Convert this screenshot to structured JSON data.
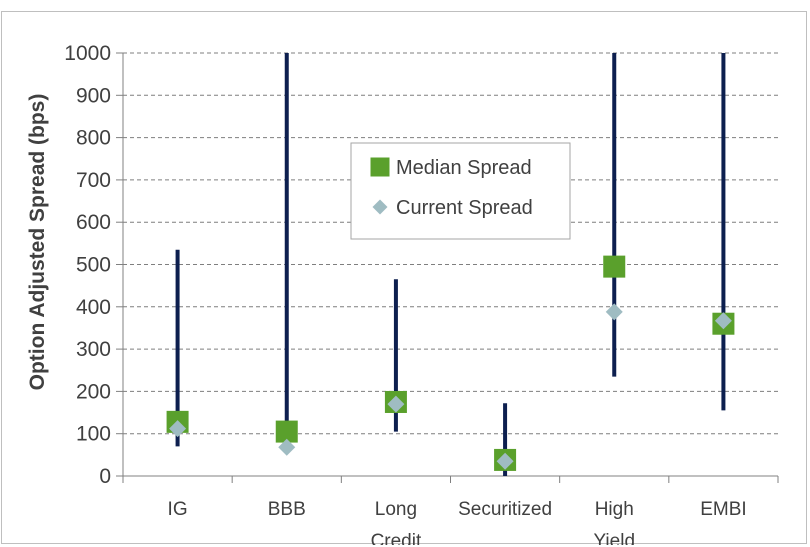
{
  "chart_data": {
    "type": "scatter",
    "title": "",
    "xlabel": "",
    "ylabel": "Option Adjusted Spread (bps)",
    "ylim": [
      0,
      1000
    ],
    "yticks": [
      "0",
      "100",
      "200",
      "300",
      "400",
      "500",
      "600",
      "700",
      "800",
      "900",
      "1000"
    ],
    "grid": "horizontal dashed",
    "legend_position": "center-top",
    "categories": [
      [
        "IG"
      ],
      [
        "BBB"
      ],
      [
        "Long",
        "Credit"
      ],
      [
        "Securitized"
      ],
      [
        "High",
        "Yield"
      ],
      [
        "EMBI"
      ]
    ],
    "ranges": [
      {
        "low": 70,
        "high": 535
      },
      {
        "low": 65,
        "high": 1000
      },
      {
        "low": 105,
        "high": 465
      },
      {
        "low": 0,
        "high": 172
      },
      {
        "low": 235,
        "high": 1000
      },
      {
        "low": 155,
        "high": 1000
      }
    ],
    "series": [
      {
        "name": "Median Spread",
        "marker": "square",
        "color": "#5aa02c",
        "values": [
          128,
          105,
          175,
          38,
          495,
          360
        ]
      },
      {
        "name": "Current Spread",
        "marker": "diamond",
        "color": "#9fbcc2",
        "values": [
          112,
          68,
          170,
          35,
          388,
          367
        ]
      }
    ],
    "range_color": "#0d1f4f",
    "grid_color": "#7f7f7f"
  }
}
